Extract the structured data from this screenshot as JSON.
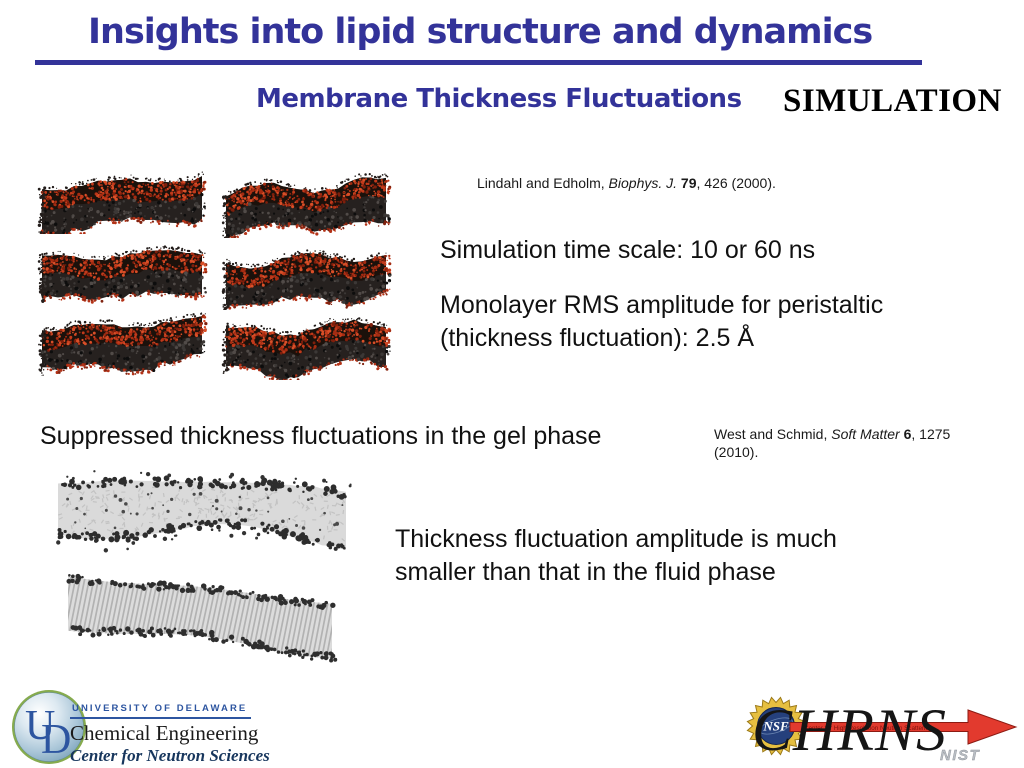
{
  "slide": {
    "title": "Insights into lipid structure and dynamics",
    "subtitle": "Membrane Thickness Fluctuations",
    "corner_label": "SIMULATION"
  },
  "body": {
    "sim_time": "Simulation time scale: 10 or 60 ns",
    "monolayer": "Monolayer RMS amplitude for peristaltic (thickness fluctuation): 2.5 Å",
    "suppressed": "Suppressed thickness fluctuations in the gel phase",
    "thickness": "Thickness fluctuation amplitude is much smaller than that in the fluid phase"
  },
  "citations": {
    "lindahl": {
      "authors": "Lindahl and Edholm, ",
      "journal": "Biophys. J.",
      "volume": " 79",
      "rest": ", 426 (2000)."
    },
    "west": {
      "authors": "West and Schmid, ",
      "journal": "Soft Matter",
      "volume": " 6",
      "rest": ", 1275 (2010)."
    }
  },
  "figures": {
    "simulation_panels": {
      "description": "Six MD-simulation snapshots of fluctuating lipid bilayer patches (red headgroups, dark tails)",
      "rows": 3,
      "cols": 2
    },
    "gel_panels": {
      "description": "Two bilayer side views: fluid-like disordered ribbon and ordered gel-phase ribbon with tilted chains",
      "count": 2
    }
  },
  "footer": {
    "ud_logo": {
      "monogram_u": "U",
      "monogram_d": "D",
      "university": "UNIVERSITY OF DELAWARE",
      "department": "Chemical Engineering",
      "center": "Center for Neutron Sciences"
    },
    "chrns_logo": {
      "nsf": "NSF",
      "acronym": "CHRNS",
      "tagline": "Center for High Resolution Neutron Scattering",
      "nist": "NIST"
    }
  },
  "colors": {
    "accent_blue": "#333399",
    "body_text": "#111111",
    "head_red": "#c23a1b",
    "arrow_red": "#e23a2e",
    "nsf_gold": "#e6bf40",
    "nsf_navy": "#25407c",
    "ud_blue": "#2d55a0"
  }
}
